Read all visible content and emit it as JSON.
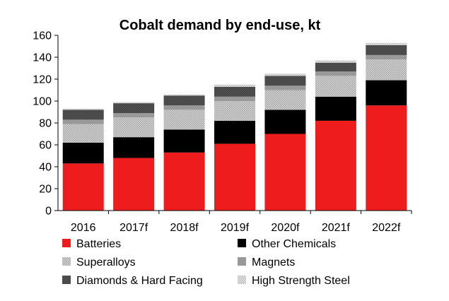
{
  "chart_data": {
    "type": "bar",
    "stacked": true,
    "title": "Cobalt demand by end-use, kt",
    "xlabel": "",
    "ylabel": "",
    "ylim": [
      0,
      160
    ],
    "yticks": [
      0,
      20,
      40,
      60,
      80,
      100,
      120,
      140,
      160
    ],
    "grid": false,
    "legend_position": "bottom",
    "categories": [
      "2016",
      "2017f",
      "2018f",
      "2019f",
      "2020f",
      "2021f",
      "2022f"
    ],
    "series": [
      {
        "name": "Batteries",
        "color": "#ee1c1c",
        "pattern": "solid",
        "values": [
          43,
          48,
          53,
          61,
          70,
          82,
          96
        ]
      },
      {
        "name": "Other Chemicals",
        "color": "#000000",
        "pattern": "solid",
        "values": [
          19,
          19,
          21,
          21,
          22,
          22,
          23
        ]
      },
      {
        "name": "Superalloys",
        "color": "#d9d9d9",
        "pattern": "dots",
        "values": [
          17,
          18,
          18,
          18,
          18,
          19,
          19
        ]
      },
      {
        "name": "Magnets",
        "color": "#999999",
        "pattern": "solid",
        "values": [
          4,
          4,
          4,
          4,
          4,
          4,
          4
        ]
      },
      {
        "name": "Diamonds & Hard Facing",
        "color": "#555555",
        "pattern": "dots",
        "values": [
          9,
          9,
          9,
          9,
          9,
          8,
          9
        ]
      },
      {
        "name": "High Strength Steel",
        "color": "#eeeeee",
        "pattern": "dots",
        "values": [
          1,
          1,
          1,
          2,
          2,
          2,
          2
        ]
      }
    ]
  }
}
